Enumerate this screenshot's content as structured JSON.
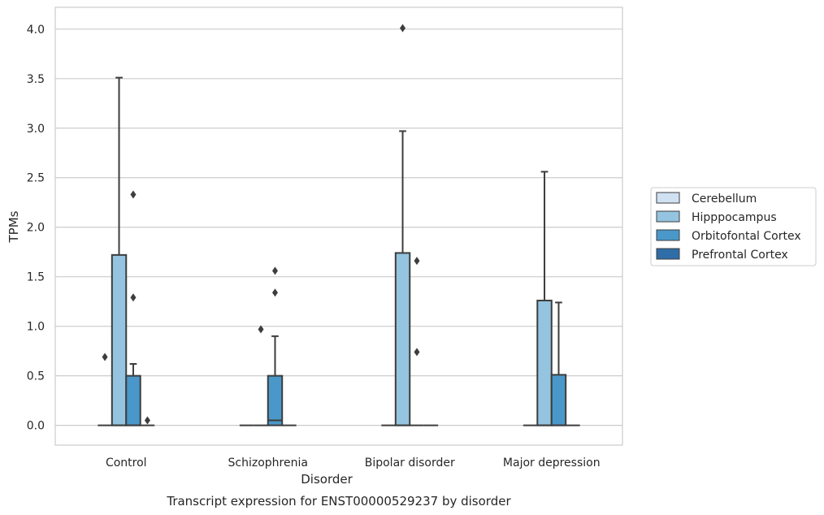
{
  "caption": "Transcript expression for ENST00000529237 by disorder",
  "chart_data": {
    "type": "box",
    "title": "",
    "xlabel": "Disorder",
    "ylabel": "TPMs",
    "ylim": [
      -0.2,
      4.22
    ],
    "yticks": [
      "0.0",
      "0.5",
      "1.0",
      "1.5",
      "2.0",
      "2.5",
      "3.0",
      "3.5",
      "4.0"
    ],
    "grid": true,
    "legend_position": "right",
    "categories": [
      "Control",
      "Schizophrenia",
      "Bipolar disorder",
      "Major depression"
    ],
    "series": [
      {
        "name": "Cerebellum",
        "color": "#d0e1f2",
        "boxes": [
          {
            "q1": 0,
            "median": 0,
            "q3": 0,
            "whisker_low": 0,
            "whisker_high": 0,
            "outliers": [
              0.69
            ]
          },
          {
            "q1": 0,
            "median": 0,
            "q3": 0,
            "whisker_low": 0,
            "whisker_high": 0,
            "outliers": []
          },
          {
            "q1": 0,
            "median": 0,
            "q3": 0,
            "whisker_low": 0,
            "whisker_high": 0,
            "outliers": []
          },
          {
            "q1": 0,
            "median": 0,
            "q3": 0,
            "whisker_low": 0,
            "whisker_high": 0,
            "outliers": []
          }
        ]
      },
      {
        "name": "Hipppocampus",
        "color": "#94c4df",
        "boxes": [
          {
            "q1": 0,
            "median": 0,
            "q3": 1.72,
            "whisker_low": 0,
            "whisker_high": 3.51,
            "outliers": []
          },
          {
            "q1": 0,
            "median": 0,
            "q3": 0,
            "whisker_low": 0,
            "whisker_high": 0,
            "outliers": [
              0.97
            ]
          },
          {
            "q1": 0,
            "median": 0,
            "q3": 1.74,
            "whisker_low": 0,
            "whisker_high": 2.97,
            "outliers": [
              4.01
            ]
          },
          {
            "q1": 0,
            "median": 0,
            "q3": 1.26,
            "whisker_low": 0,
            "whisker_high": 2.56,
            "outliers": []
          }
        ]
      },
      {
        "name": "Orbitofontal Cortex",
        "color": "#4a98c9",
        "boxes": [
          {
            "q1": 0,
            "median": 0,
            "q3": 0.5,
            "whisker_low": 0,
            "whisker_high": 0.62,
            "outliers": [
              1.29,
              2.33
            ]
          },
          {
            "q1": 0,
            "median": 0.05,
            "q3": 0.5,
            "whisker_low": 0,
            "whisker_high": 0.9,
            "outliers": [
              1.34,
              1.56
            ]
          },
          {
            "q1": 0,
            "median": 0,
            "q3": 0,
            "whisker_low": 0,
            "whisker_high": 0,
            "outliers": [
              0.74,
              1.66
            ]
          },
          {
            "q1": 0,
            "median": 0,
            "q3": 0.51,
            "whisker_low": 0,
            "whisker_high": 1.24,
            "outliers": []
          }
        ]
      },
      {
        "name": "Prefrontal Cortex",
        "color": "#2e6da8",
        "boxes": [
          {
            "q1": 0,
            "median": 0,
            "q3": 0,
            "whisker_low": 0,
            "whisker_high": 0,
            "outliers": [
              0.05
            ]
          },
          {
            "q1": 0,
            "median": 0,
            "q3": 0,
            "whisker_low": 0,
            "whisker_high": 0,
            "outliers": []
          },
          {
            "q1": 0,
            "median": 0,
            "q3": 0,
            "whisker_low": 0,
            "whisker_high": 0,
            "outliers": []
          },
          {
            "q1": 0,
            "median": 0,
            "q3": 0,
            "whisker_low": 0,
            "whisker_high": 0,
            "outliers": []
          }
        ]
      }
    ]
  }
}
